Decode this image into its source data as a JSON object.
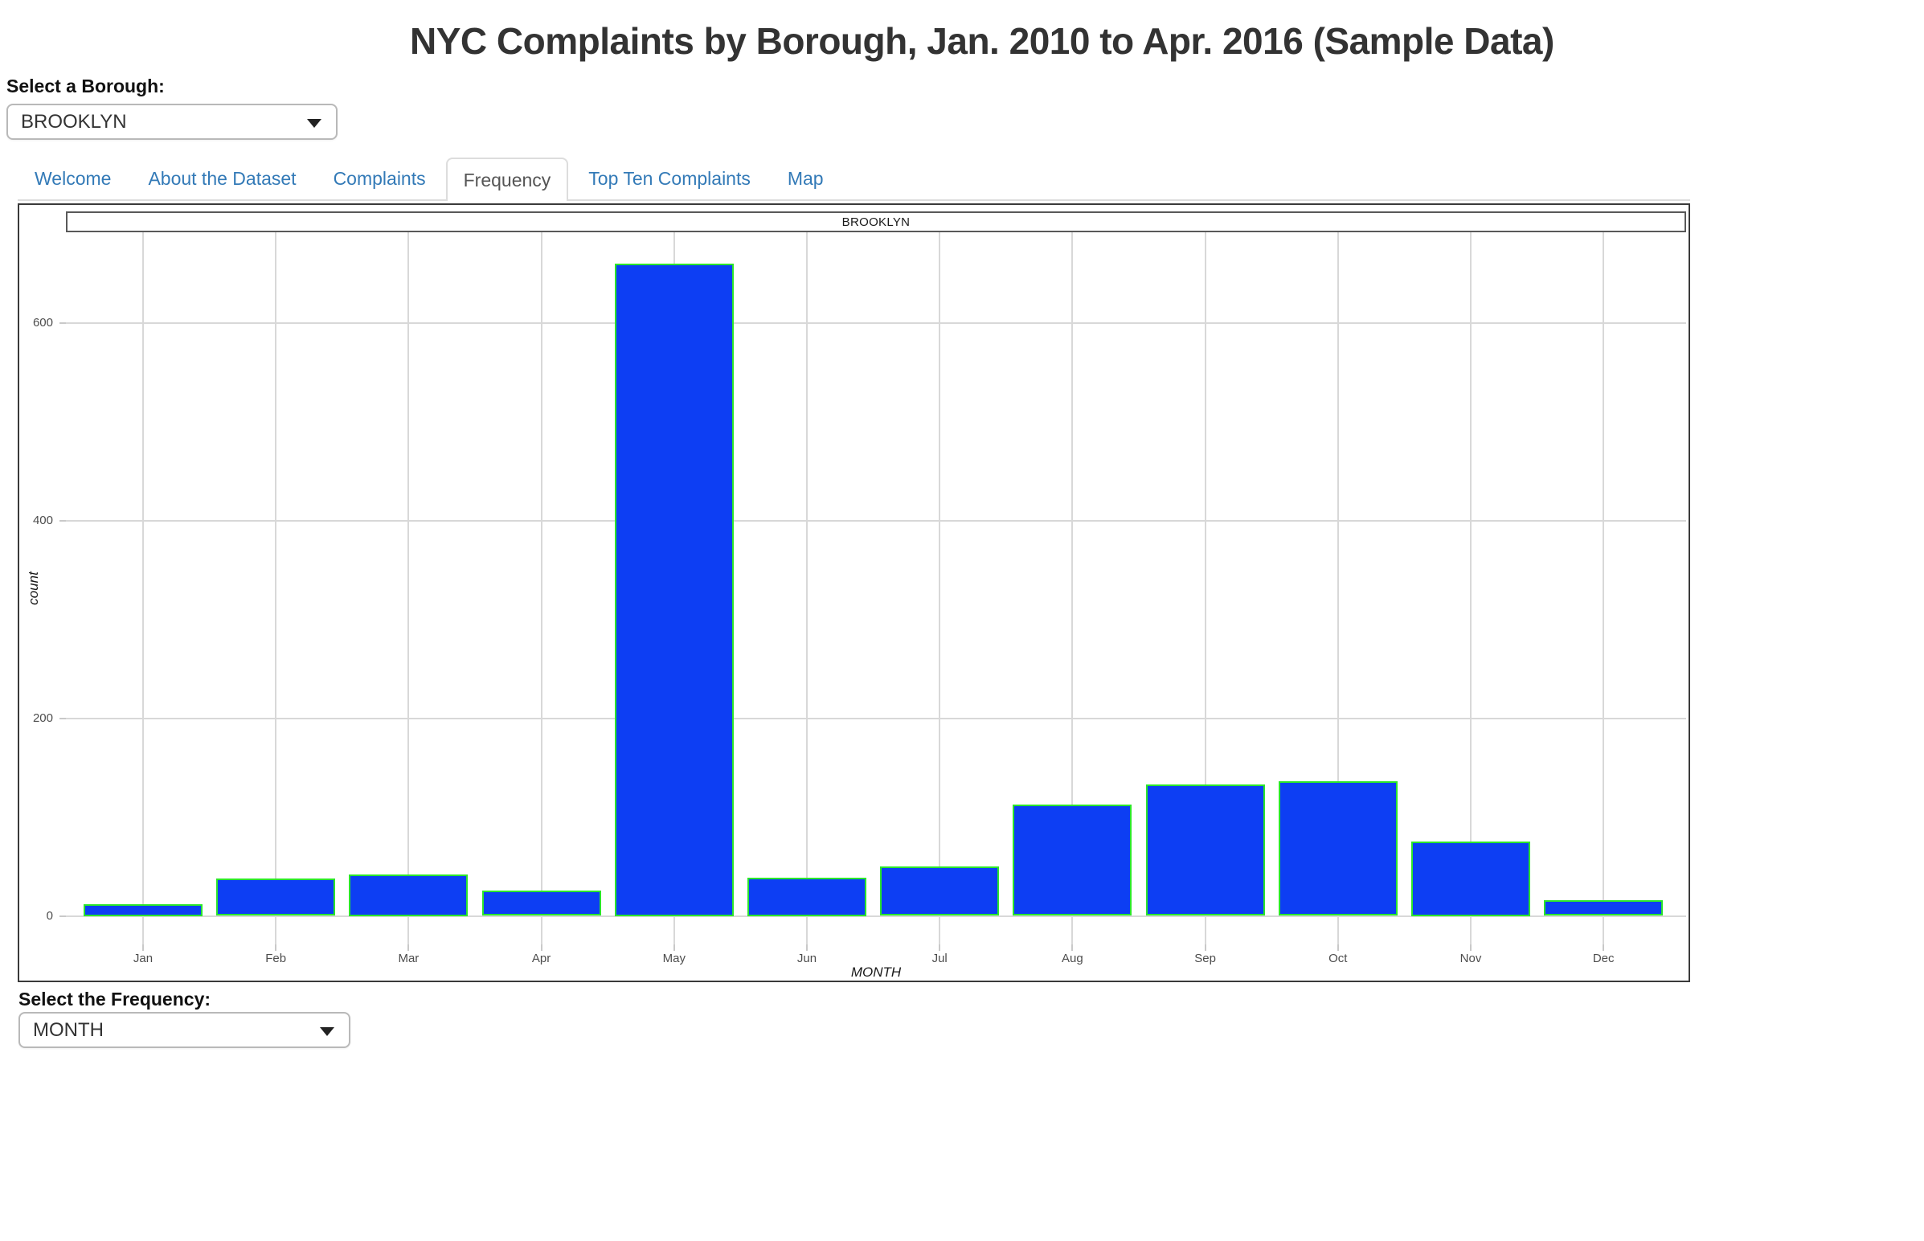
{
  "title": "NYC Complaints by Borough, Jan. 2010 to Apr. 2016 (Sample Data)",
  "borough_select": {
    "label": "Select a Borough:",
    "value": "BROOKLYN"
  },
  "frequency_select": {
    "label": "Select the Frequency:",
    "value": "MONTH"
  },
  "tabs": [
    {
      "label": "Welcome",
      "active": false
    },
    {
      "label": "About the Dataset",
      "active": false
    },
    {
      "label": "Complaints",
      "active": false
    },
    {
      "label": "Frequency",
      "active": true
    },
    {
      "label": "Top Ten Complaints",
      "active": false
    },
    {
      "label": "Map",
      "active": false
    }
  ],
  "chart_data": {
    "type": "bar",
    "facet_label": "BROOKLYN",
    "categories": [
      "Jan",
      "Feb",
      "Mar",
      "Apr",
      "May",
      "Jun",
      "Jul",
      "Aug",
      "Sep",
      "Oct",
      "Nov",
      "Dec"
    ],
    "values": [
      12,
      38,
      42,
      26,
      660,
      39,
      50,
      113,
      133,
      136,
      75,
      16
    ],
    "title": "",
    "xlabel": "MONTH",
    "ylabel": "count",
    "yticks": [
      0,
      200,
      400,
      600
    ],
    "ylim": [
      -35,
      693
    ],
    "legend": "none",
    "grid": "major-only",
    "bar_fill": "#0d3ef3",
    "bar_border": "#2be52b",
    "grid_color": "#d8d8d8"
  }
}
